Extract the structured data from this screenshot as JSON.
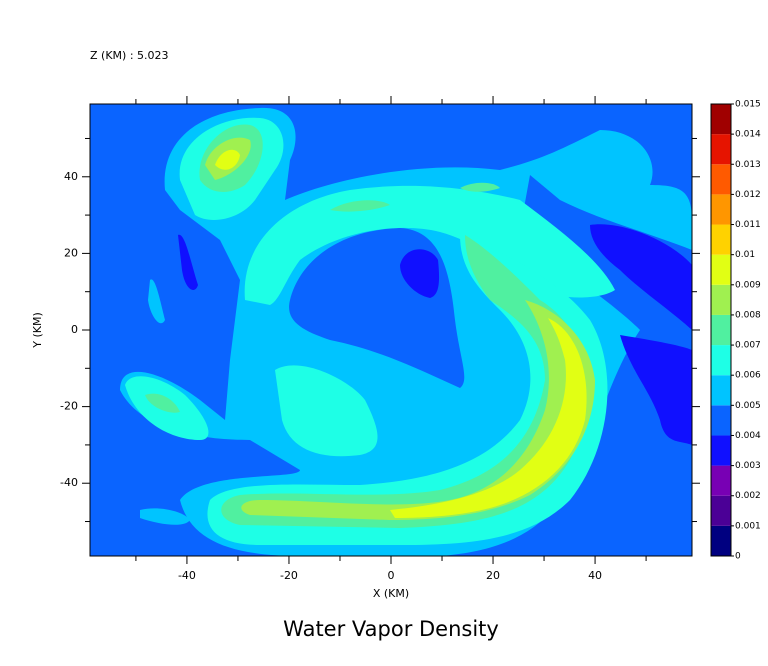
{
  "chart_data": {
    "type": "contour",
    "title": "Water Vapor Density",
    "annotation": "Z (KM) : 5.023",
    "xlabel": "X (KM)",
    "ylabel": "Y (KM)",
    "xlim": [
      -59,
      59
    ],
    "ylim": [
      -59,
      59
    ],
    "xticks": [
      -40,
      -20,
      0,
      20,
      40
    ],
    "yticks": [
      -40,
      -20,
      0,
      20,
      40
    ],
    "xminorticks": [
      -50,
      -30,
      -10,
      10,
      30,
      50
    ],
    "yminorticks": [
      -50,
      -30,
      -10,
      10,
      30,
      50
    ],
    "colorbar": {
      "levels": [
        0,
        0.001,
        0.002,
        0.003,
        0.004,
        0.005,
        0.006,
        0.007,
        0.008,
        0.009,
        0.01,
        0.011,
        0.012,
        0.013,
        0.014,
        0.015
      ],
      "colors": [
        "#000080",
        "#4b0096",
        "#7800b4",
        "#1010ff",
        "#0a64ff",
        "#00c4ff",
        "#1effe6",
        "#50f0a0",
        "#a0f050",
        "#e1ff14",
        "#ffd200",
        "#ff9600",
        "#ff5a00",
        "#e61400",
        "#a00000"
      ]
    }
  }
}
